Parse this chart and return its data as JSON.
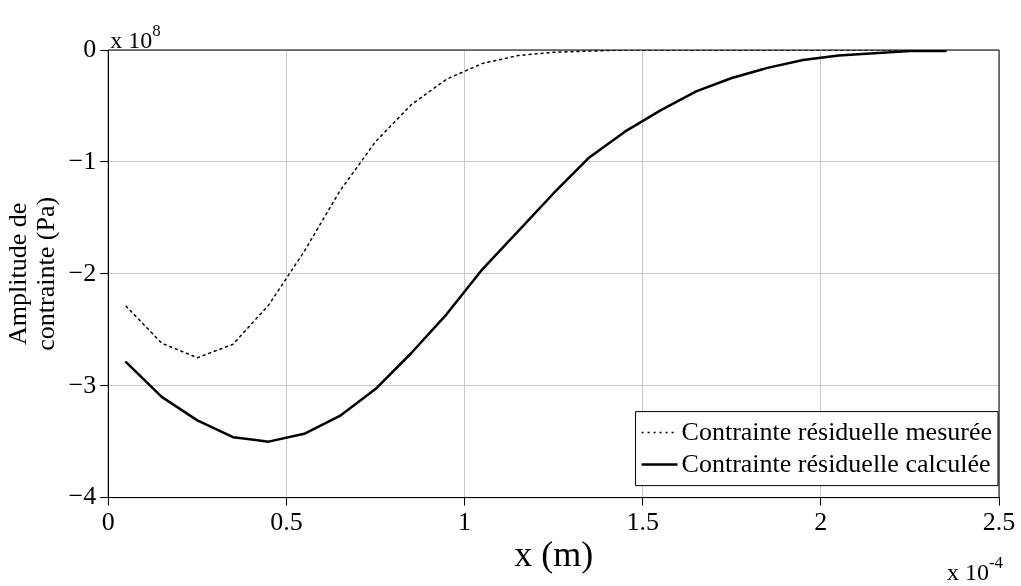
{
  "chart_data": {
    "type": "line",
    "xlabel": "x (m)",
    "ylabel": "Amplitude de contrainte (Pa)",
    "annotations": [
      "x 10$^{8}$",
      "x 10$^{-4}$"
    ],
    "x": [
      0.05,
      0.15,
      0.25,
      0.35,
      0.45,
      0.55,
      0.65,
      0.75,
      0.85,
      0.95,
      1.05,
      1.15,
      1.25,
      1.35,
      1.45,
      1.55,
      1.65,
      1.75,
      1.85,
      1.95,
      2.05,
      2.15,
      2.25,
      2.35
    ],
    "series": [
      {
        "name": "Contrainte résiduelle mesurée",
        "color": "#000000",
        "line_style": "dotted",
        "values": [
          -2.29,
          -2.62,
          -2.75,
          -2.63,
          -2.28,
          -1.8,
          -1.26,
          -0.82,
          -0.49,
          -0.26,
          -0.12,
          -0.05,
          -0.02,
          -0.01,
          0,
          0,
          0,
          0,
          0,
          0,
          0,
          0,
          0,
          0
        ]
      },
      {
        "name": "Contrainte résiduelle calculée",
        "color": "#000000",
        "line_style": "solid",
        "values": [
          -2.79,
          -3.1,
          -3.31,
          -3.46,
          -3.5,
          -3.43,
          -3.27,
          -3.03,
          -2.71,
          -2.36,
          -1.96,
          -1.62,
          -1.28,
          -0.96,
          -0.73,
          -0.54,
          -0.37,
          -0.25,
          -0.16,
          -0.09,
          -0.05,
          -0.03,
          -0.01,
          -0.01
        ]
      }
    ],
    "xlim": [
      0,
      2.5
    ],
    "xticks": [
      0,
      0.5,
      1,
      1.5,
      2,
      2.5
    ],
    "ylim": [
      -4,
      0
    ],
    "yticks": [
      -4,
      -3,
      -2,
      -1,
      0
    ],
    "grid": true,
    "legend": "bottom right",
    "marker": "none"
  }
}
